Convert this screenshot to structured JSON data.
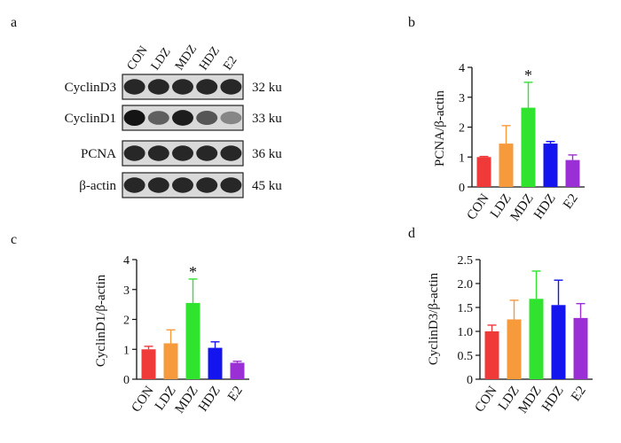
{
  "panels": {
    "a": {
      "letter": "a",
      "lanes": [
        "CON",
        "LDZ",
        "MDZ",
        "HDZ",
        "E2"
      ],
      "blots": [
        {
          "protein": "CyclinD3",
          "size": "32 ku",
          "intensity": [
            0.85,
            0.85,
            0.85,
            0.85,
            0.85
          ]
        },
        {
          "protein": "CyclinD1",
          "size": "33 ku",
          "intensity": [
            0.95,
            0.55,
            0.9,
            0.6,
            0.35
          ]
        },
        {
          "protein": "PCNA",
          "size": "36 ku",
          "intensity": [
            0.85,
            0.85,
            0.85,
            0.85,
            0.85
          ]
        },
        {
          "protein": "β-actin",
          "size": "45 ku",
          "intensity": [
            0.85,
            0.85,
            0.85,
            0.85,
            0.85
          ]
        }
      ]
    }
  },
  "chart_data": [
    {
      "panel": "b",
      "type": "bar",
      "categories": [
        "CON",
        "LDZ",
        "MDZ",
        "HDZ",
        "E2"
      ],
      "values": [
        1.0,
        1.45,
        2.65,
        1.45,
        0.9
      ],
      "errors": [
        0.02,
        0.6,
        0.85,
        0.07,
        0.17
      ],
      "significance": [
        "",
        "",
        "*",
        "",
        ""
      ],
      "colors": [
        "#f03a3a",
        "#f79a3c",
        "#2fe32f",
        "#1414ef",
        "#9b2fd6"
      ],
      "ylabel": "PCNA/β-actin",
      "ylim": [
        0,
        4
      ],
      "yticks": [
        0,
        1,
        2,
        3,
        4
      ],
      "ytick_labels": [
        "0",
        "1",
        "2",
        "3",
        "4"
      ]
    },
    {
      "panel": "c",
      "type": "bar",
      "categories": [
        "CON",
        "LDZ",
        "MDZ",
        "HDZ",
        "E2"
      ],
      "values": [
        1.0,
        1.2,
        2.55,
        1.05,
        0.55
      ],
      "errors": [
        0.1,
        0.45,
        0.8,
        0.2,
        0.05
      ],
      "significance": [
        "",
        "",
        "*",
        "",
        ""
      ],
      "colors": [
        "#f03a3a",
        "#f79a3c",
        "#2fe32f",
        "#1414ef",
        "#9b2fd6"
      ],
      "ylabel": "CyclinD1/β-actin",
      "ylim": [
        0,
        4
      ],
      "yticks": [
        0,
        1,
        2,
        3,
        4
      ],
      "ytick_labels": [
        "0",
        "1",
        "2",
        "3",
        "4"
      ]
    },
    {
      "panel": "d",
      "type": "bar",
      "categories": [
        "CON",
        "LDZ",
        "MDZ",
        "HDZ",
        "E2"
      ],
      "values": [
        1.0,
        1.25,
        1.68,
        1.55,
        1.28
      ],
      "errors": [
        0.13,
        0.4,
        0.58,
        0.52,
        0.3
      ],
      "significance": [
        "",
        "",
        "",
        "",
        ""
      ],
      "colors": [
        "#f03a3a",
        "#f79a3c",
        "#2fe32f",
        "#1414ef",
        "#9b2fd6"
      ],
      "ylabel": "CyclinD3/β-actin",
      "ylim": [
        0,
        2.5
      ],
      "yticks": [
        0,
        0.5,
        1.0,
        1.5,
        2.0,
        2.5
      ],
      "ytick_labels": [
        "0",
        "0.5",
        "1.0",
        "1.5",
        "2.0",
        "2.5"
      ]
    }
  ]
}
